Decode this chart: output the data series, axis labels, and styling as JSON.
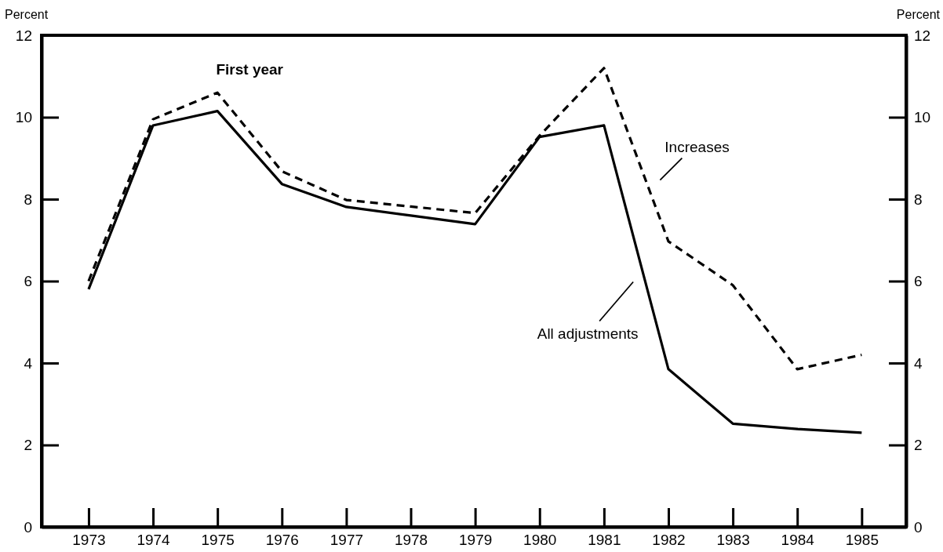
{
  "chart_data": {
    "type": "line",
    "title": "First year",
    "ylabel": "Percent",
    "y2label": "Percent",
    "categories": [
      "1973",
      "1974",
      "1975",
      "1976",
      "1977",
      "1978",
      "1979",
      "1980",
      "1981",
      "1982",
      "1983",
      "1984",
      "1985"
    ],
    "series": [
      {
        "name": "Increases",
        "color": "#000000",
        "line_style": "dashed",
        "values": [
          6.0,
          9.95,
          10.6,
          8.68,
          7.98,
          7.82,
          7.66,
          9.55,
          11.2,
          6.97,
          5.9,
          3.85,
          4.2
        ]
      },
      {
        "name": "All adjustments",
        "color": "#000000",
        "line_style": "solid",
        "values": [
          5.8,
          9.8,
          10.15,
          8.37,
          7.81,
          7.6,
          7.39,
          9.52,
          9.8,
          3.85,
          2.52,
          2.39,
          2.3
        ]
      }
    ],
    "ylim": [
      0,
      12
    ],
    "yticks": [
      0,
      2,
      4,
      6,
      8,
      10,
      12
    ],
    "y2lim": [
      0,
      12
    ],
    "y2ticks": [
      0,
      2,
      4,
      6,
      8,
      10,
      12
    ],
    "grid": false,
    "legend": false,
    "marker": "none"
  }
}
